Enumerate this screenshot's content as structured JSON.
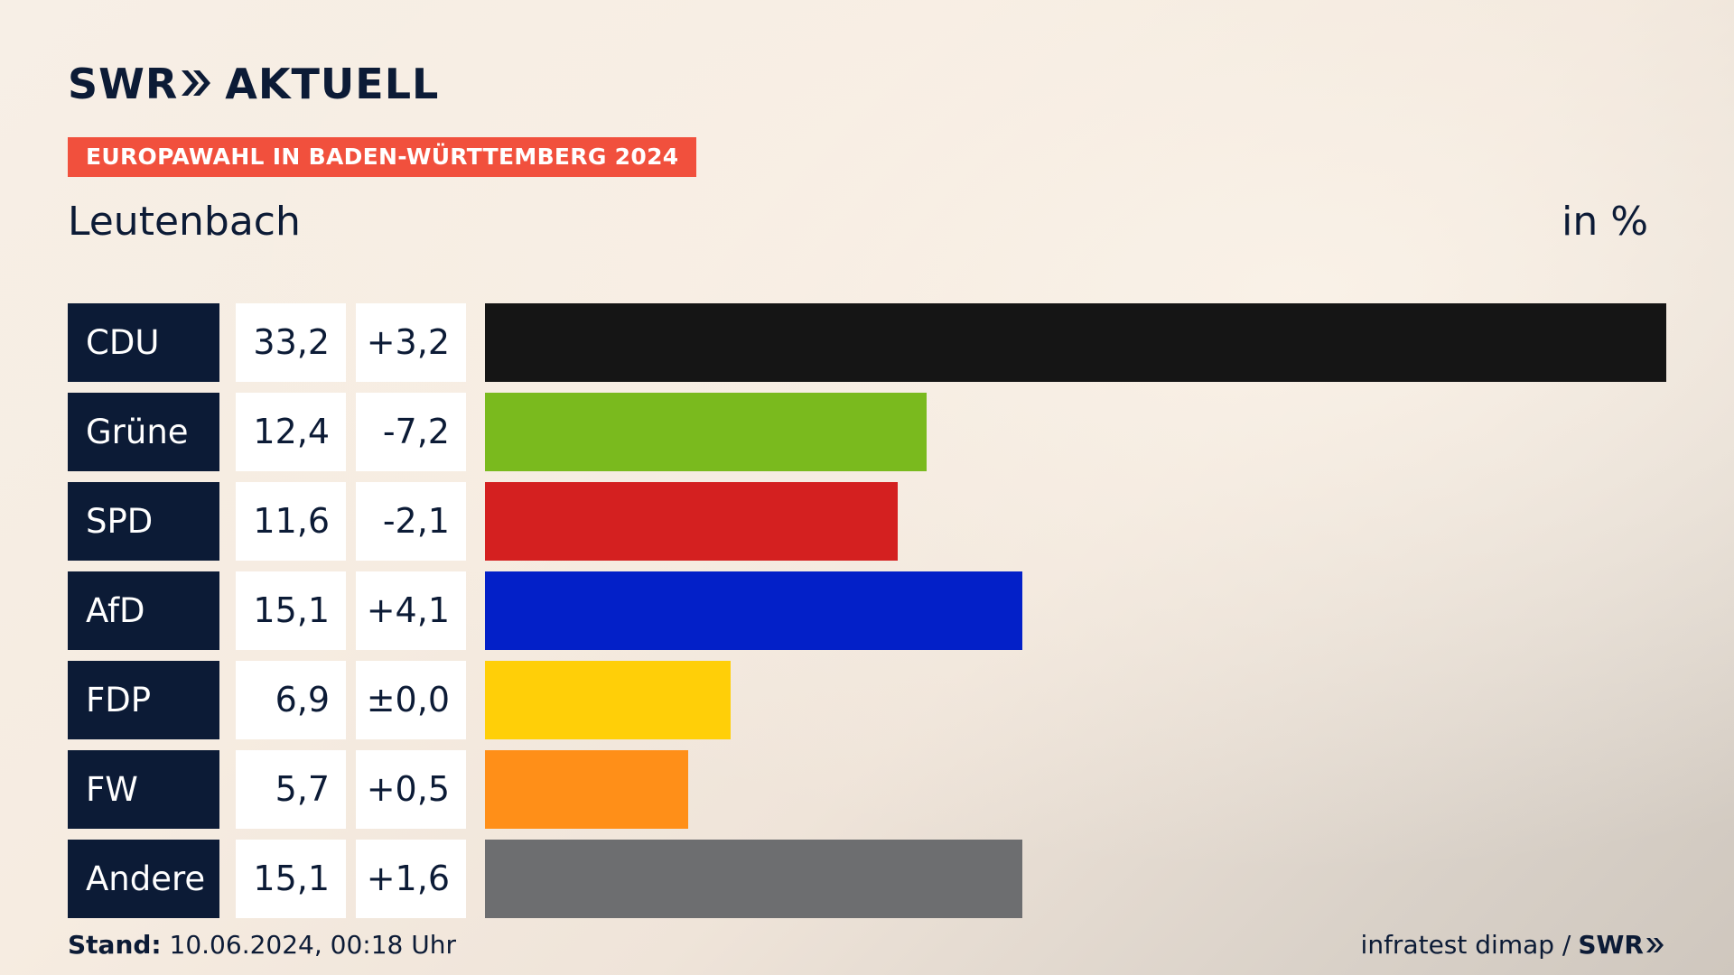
{
  "brand": {
    "logo_text": "SWR",
    "logo_text2": "AKTUELL"
  },
  "badge": "EUROPAWAHL IN BADEN-WÜRTTEMBERG 2024",
  "region": "Leutenbach",
  "unit": "in %",
  "colors": {
    "navy": "#0c1b36",
    "badge": "#f1503d",
    "CDU": "#151515",
    "Grüne": "#7aba1e",
    "SPD": "#d42020",
    "AfD": "#0320c8",
    "FDP": "#ffcf08",
    "FW": "#ff8f18",
    "Andere": "#6d6e70"
  },
  "chart_data": {
    "type": "bar",
    "categories": [
      "CDU",
      "Grüne",
      "SPD",
      "AfD",
      "FDP",
      "FW",
      "Andere"
    ],
    "values": [
      33.2,
      12.4,
      11.6,
      15.1,
      6.9,
      5.7,
      15.1
    ],
    "value_labels": [
      "33,2",
      "12,4",
      "11,6",
      "15,1",
      "6,9",
      "5,7",
      "15,1"
    ],
    "diff_labels": [
      "+3,2",
      "-7,2",
      "-2,1",
      "+4,1",
      "±0,0",
      "+0,5",
      "+1,6"
    ],
    "ylim": [
      0,
      33.2
    ]
  },
  "footer": {
    "stand_label": "Stand:",
    "stand_value": "10.06.2024, 00:18 Uhr",
    "source": "infratest dimap /",
    "source_logo": "SWR"
  }
}
